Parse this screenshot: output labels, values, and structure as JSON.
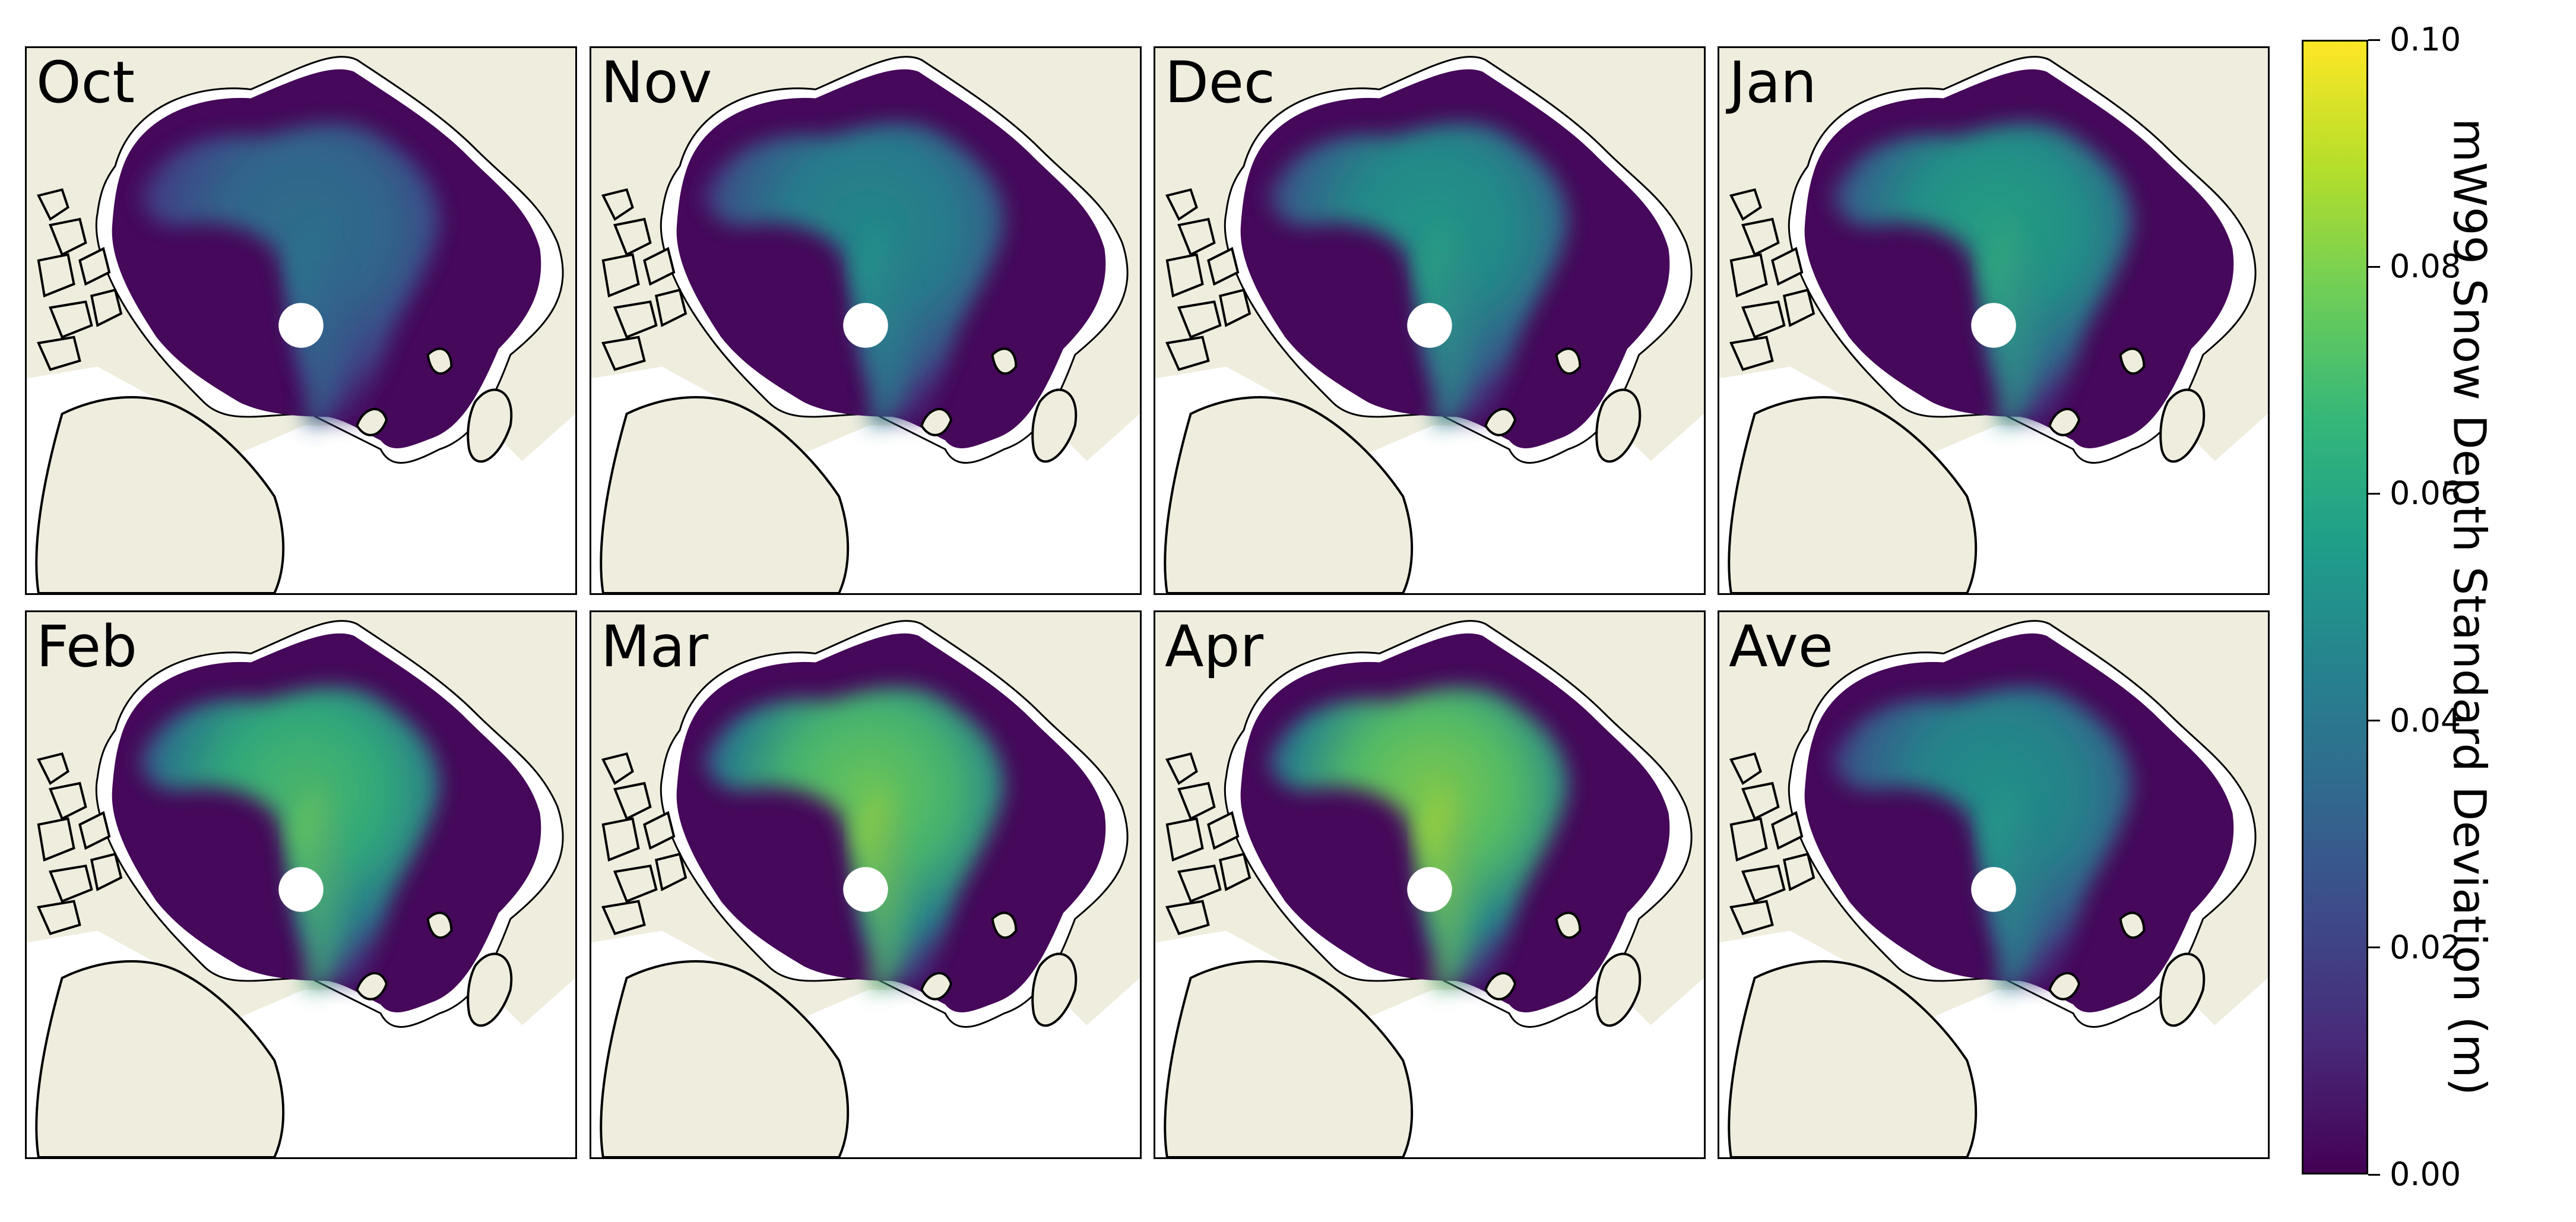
{
  "panels": [
    {
      "label": "Oct",
      "level": 0.4
    },
    {
      "label": "Nov",
      "level": 0.52
    },
    {
      "label": "Dec",
      "level": 0.58
    },
    {
      "label": "Jan",
      "level": 0.62
    },
    {
      "label": "Feb",
      "level": 0.75
    },
    {
      "label": "Mar",
      "level": 0.82
    },
    {
      "label": "Apr",
      "level": 0.85
    },
    {
      "label": "Ave",
      "level": 0.55
    }
  ],
  "colorbar": {
    "label": "mW99 Snow Depth Standard Deviation (m)",
    "min": 0.0,
    "max": 0.1,
    "ticks": [
      "0.00",
      "0.02",
      "0.04",
      "0.06",
      "0.08",
      "0.10"
    ],
    "colormap": [
      "#440154",
      "#482878",
      "#3e4989",
      "#31688e",
      "#26828e",
      "#1f9e89",
      "#35b779",
      "#6ece58",
      "#b5de2b",
      "#fde725"
    ]
  },
  "colors": {
    "land": "#efedde",
    "ocean_no_data": "#ffffff",
    "coastline": "#000000"
  }
}
